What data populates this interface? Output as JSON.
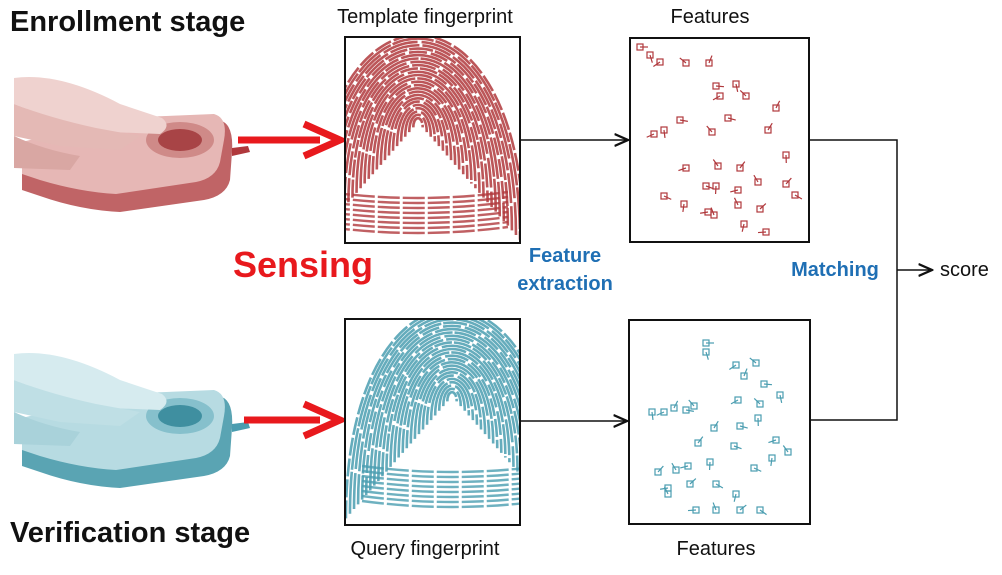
{
  "enrollment": {
    "title": "Enrollment stage",
    "fingerprint_caption": "Template fingerprint",
    "features_caption": "Features",
    "color": "#b0383c"
  },
  "verification": {
    "title": "Verification stage",
    "fingerprint_caption": "Query fingerprint",
    "features_caption": "Features",
    "color": "#4a9db0"
  },
  "sensing_label": "Sensing",
  "feature_extraction_label_line1": "Feature",
  "feature_extraction_label_line2": "extraction",
  "matching_label": "Matching",
  "output_label": "score",
  "colors": {
    "sensing_red": "#e8191d",
    "step_blue": "#1f6fb4",
    "enrollment_tint": "#b0383c",
    "verification_tint": "#4a9db0"
  },
  "icons": [
    "fingerprint-scanner-icon",
    "fingerprint-icon",
    "minutiae-marker-icon",
    "arrow-icon"
  ]
}
